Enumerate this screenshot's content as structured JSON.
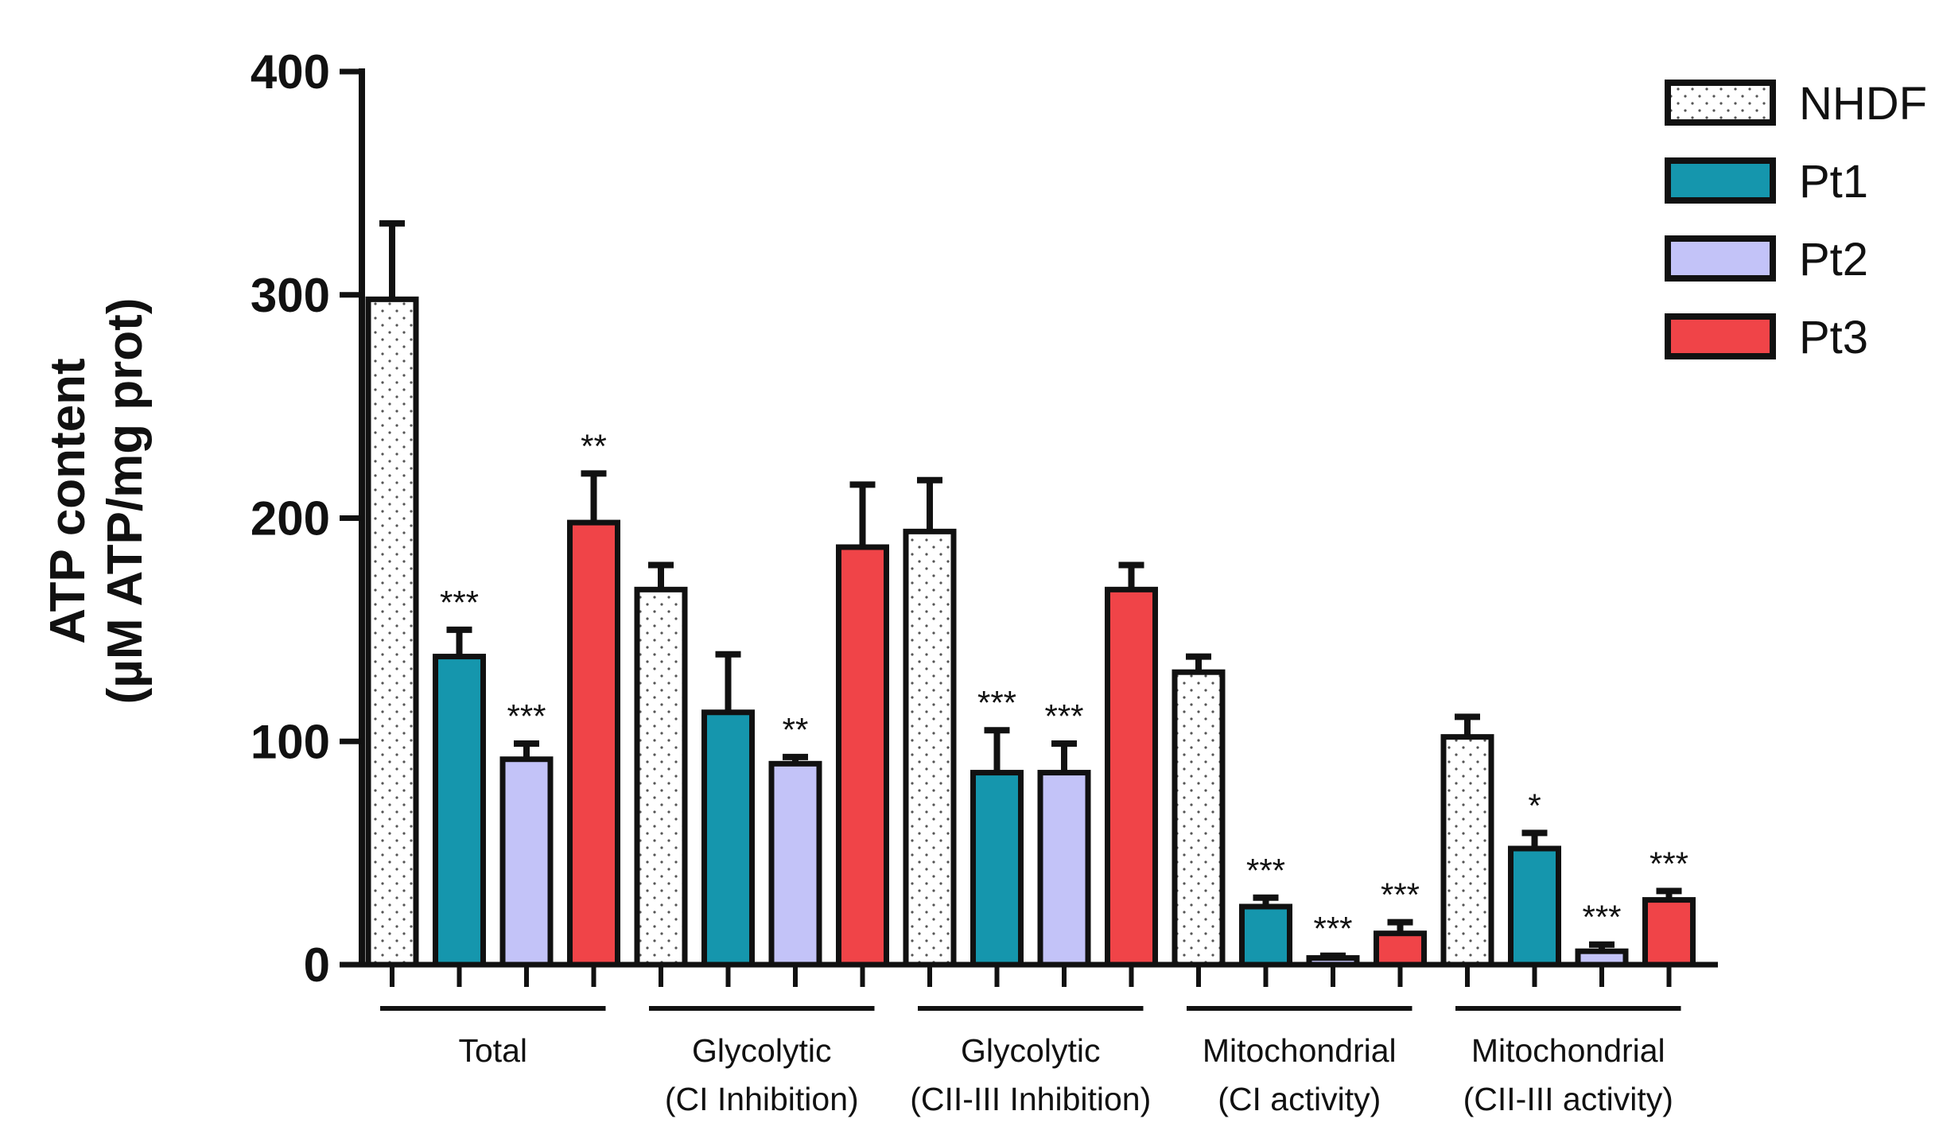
{
  "chart_data": {
    "type": "bar",
    "title": "",
    "xlabel": "",
    "ylabel": "ATP content",
    "ylabel_unit": "(µM ATP/mg prot)",
    "ylim": [
      0,
      400
    ],
    "yticks": [
      "0",
      "100",
      "200",
      "300",
      "400"
    ],
    "grid": false,
    "legend_position": "top-right",
    "groups": [
      {
        "label_lines": [
          "Total",
          ""
        ]
      },
      {
        "label_lines": [
          "Glycolytic",
          "(CI Inhibition)"
        ]
      },
      {
        "label_lines": [
          "Glycolytic",
          "(CII-III Inhibition)"
        ]
      },
      {
        "label_lines": [
          "Mitochondrial",
          "(CI activity)"
        ]
      },
      {
        "label_lines": [
          "Mitochondrial",
          "(CII-III activity)"
        ]
      }
    ],
    "series": [
      {
        "name": "NHDF",
        "color": "#ffffff",
        "pattern": "dots",
        "values": [
          298,
          168,
          194,
          131,
          102
        ],
        "errors": [
          34,
          11,
          23,
          7,
          9
        ],
        "significance": [
          "",
          "",
          "",
          "",
          ""
        ]
      },
      {
        "name": "Pt1",
        "color": "#1596ad",
        "values": [
          138,
          113,
          86,
          26,
          52
        ],
        "errors": [
          12,
          26,
          19,
          4,
          7
        ],
        "significance": [
          "***",
          "",
          "***",
          "***",
          "*"
        ]
      },
      {
        "name": "Pt2",
        "color": "#c3c3f8",
        "values": [
          92,
          90,
          86,
          3,
          6
        ],
        "errors": [
          7,
          3,
          13,
          1,
          3
        ],
        "significance": [
          "***",
          "**",
          "***",
          "***",
          "***"
        ]
      },
      {
        "name": "Pt3",
        "color": "#f04448",
        "values": [
          198,
          187,
          168,
          14,
          29
        ],
        "errors": [
          22,
          28,
          11,
          5,
          4
        ],
        "significance": [
          "**",
          "",
          "",
          "***",
          "***"
        ]
      }
    ]
  }
}
